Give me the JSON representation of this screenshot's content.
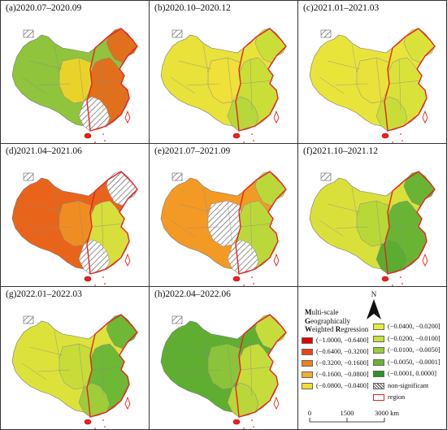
{
  "panels": [
    {
      "label": "(a)2020.07–2020.09",
      "west": "#8fc43c",
      "center": "#e9d32a",
      "east": "#e0701c",
      "south": "#ff9a1f",
      "hatch_south": true,
      "hatch_center": false,
      "hatch_ne": false
    },
    {
      "label": "(b)2020.10–2020.12",
      "west": "#e8e23a",
      "center": "#f0e03a",
      "east": "#c9de37",
      "south": "#b6d83a",
      "hatch_south": false,
      "hatch_center": false,
      "hatch_ne": false
    },
    {
      "label": "(c)2021.01–2021.03",
      "west": "#e9e43a",
      "center": "#e8e23a",
      "east": "#d9e239",
      "south": "#c9dd38",
      "hatch_south": false,
      "hatch_center": false,
      "hatch_ne": false
    },
    {
      "label": "(d)2021.04–2021.06",
      "west": "#e8641b",
      "center": "#f08d22",
      "east": "#d6df3b",
      "south": "#e5e43a",
      "hatch_south": true,
      "hatch_center": false,
      "hatch_ne": true
    },
    {
      "label": "(e)2021.07–2021.09",
      "west": "#f39a24",
      "center": "#ecd62c",
      "east": "#bbd83a",
      "south": "#a8d23a",
      "hatch_south": true,
      "hatch_center": true,
      "hatch_ne": false
    },
    {
      "label": "(f)2021.10–2021.12",
      "west": "#d9e03a",
      "center": "#b8d838",
      "east": "#69b533",
      "south": "#5aad30",
      "hatch_south": false,
      "hatch_center": false,
      "hatch_ne": false
    },
    {
      "label": "(g)2022.01–2022.03",
      "west": "#dde23a",
      "center": "#c7dc39",
      "east": "#6db834",
      "south": "#9fcc39",
      "hatch_south": false,
      "hatch_center": false,
      "hatch_ne": false
    },
    {
      "label": "(h)2022.04–2022.06",
      "west": "#5fae31",
      "center": "#8bc43a",
      "east": "#c6dc3a",
      "south": "#b9d73a",
      "hatch_south": false,
      "hatch_center": false,
      "hatch_ne": false
    }
  ],
  "legend": {
    "title_lines": [
      {
        "first": "M",
        "rest": "ulti-scale"
      },
      {
        "first": "G",
        "rest": "eographically"
      },
      {
        "first": "W",
        "rest": "eighted "
      },
      {
        "first": "R",
        "rest": "egression"
      }
    ],
    "left_items": [
      {
        "label": "(−1.0000, −0.6400]",
        "color": "#e00000"
      },
      {
        "label": "(−0.6400, −0.3200]",
        "color": "#e8461a"
      },
      {
        "label": "(−0.3200, −0.1600]",
        "color": "#ee8020"
      },
      {
        "label": "(−0.1600, −0.0800]",
        "color": "#f2ad30"
      },
      {
        "label": "(−0.0800, −0.0400]",
        "color": "#f2df34"
      }
    ],
    "right_items": [
      {
        "label": "(−0.0400, −0.0200]",
        "color": "#e6ee3a"
      },
      {
        "label": "(−0.0200, −0.0100]",
        "color": "#c6e03a"
      },
      {
        "label": "(−0.0100, −0.0050]",
        "color": "#9ccc3a"
      },
      {
        "label": "(−0.0050, −0.0001]",
        "color": "#6bb432"
      },
      {
        "label": "(−0.0001, 0.0000]",
        "color": "#2f9327"
      }
    ],
    "non_significant": "non-significant",
    "region": "region",
    "north": "N",
    "scale_labels": [
      "0",
      "1500",
      "3000 km"
    ]
  }
}
